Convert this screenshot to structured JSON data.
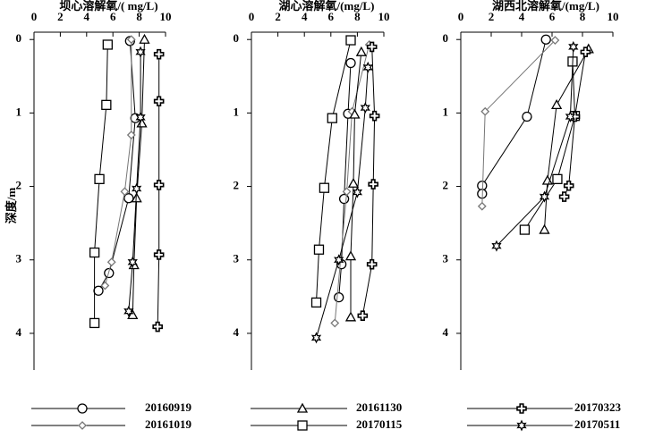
{
  "chart_data": [
    {
      "type": "line",
      "title": "坝心溶解氧/( mg/L)",
      "ylabel": "深度/m",
      "xlim": [
        0,
        10
      ],
      "xticks": [
        0,
        2,
        4,
        6,
        8,
        10
      ],
      "ylim": [
        -0.1,
        4.5
      ],
      "yticks": [
        0,
        1,
        2,
        3,
        4
      ],
      "series": [
        {
          "marker": "circle",
          "color": "#000000",
          "x": [
            7.3,
            7.7,
            7.2,
            5.7,
            4.9
          ],
          "values": [
            0.02,
            1.07,
            2.16,
            3.18,
            3.42
          ]
        },
        {
          "marker": "diamond",
          "color": "#777777",
          "x": [
            7.4,
            7.4,
            6.9,
            5.9,
            5.4
          ],
          "values": [
            0.0,
            1.3,
            2.07,
            3.03,
            3.35
          ]
        },
        {
          "marker": "triangle",
          "color": "#000000",
          "x": [
            8.4,
            8.2,
            7.8,
            7.6,
            7.5
          ],
          "values": [
            0.0,
            1.14,
            2.16,
            3.07,
            3.75
          ]
        },
        {
          "marker": "square",
          "color": "#000000",
          "x": [
            5.6,
            5.5,
            4.97,
            4.6,
            4.6
          ],
          "values": [
            0.07,
            0.89,
            1.9,
            2.9,
            3.86
          ]
        },
        {
          "marker": "cross",
          "color": "#000000",
          "x": [
            9.5,
            9.5,
            9.5,
            9.5,
            9.4
          ],
          "values": [
            0.2,
            0.84,
            1.98,
            2.93,
            3.91
          ]
        },
        {
          "marker": "star",
          "color": "#000000",
          "x": [
            8.1,
            8.1,
            7.8,
            7.5,
            7.2
          ],
          "values": [
            0.17,
            1.06,
            2.03,
            3.03,
            3.7
          ]
        }
      ]
    },
    {
      "type": "line",
      "title": "湖心溶解氧/(mg/L)",
      "xlim": [
        0,
        10
      ],
      "xticks": [
        0,
        2,
        4,
        6,
        8,
        10
      ],
      "ylim": [
        -0.1,
        4.5
      ],
      "yticks": [
        0,
        1,
        2,
        3,
        4
      ],
      "series": [
        {
          "marker": "circle",
          "color": "#000000",
          "x": [
            7.5,
            7.3,
            7.0,
            6.8,
            6.6
          ],
          "values": [
            0.32,
            1.01,
            2.17,
            3.06,
            3.51
          ]
        },
        {
          "marker": "diamond",
          "color": "#777777",
          "x": [
            8.9,
            7.6,
            7.2,
            6.3
          ],
          "values": [
            0.07,
            0.98,
            2.07,
            3.86
          ]
        },
        {
          "marker": "triangle",
          "color": "#000000",
          "x": [
            8.3,
            7.8,
            7.7,
            7.5,
            7.5
          ],
          "values": [
            0.17,
            1.02,
            1.96,
            2.95,
            3.78
          ]
        },
        {
          "marker": "square",
          "color": "#000000",
          "x": [
            7.5,
            6.1,
            5.5,
            5.1,
            4.9
          ],
          "values": [
            0.01,
            1.07,
            2.02,
            2.86,
            3.58
          ]
        },
        {
          "marker": "cross",
          "color": "#000000",
          "x": [
            9.1,
            9.3,
            9.2,
            9.1,
            8.4
          ],
          "values": [
            0.1,
            1.04,
            1.97,
            3.06,
            3.76
          ]
        },
        {
          "marker": "star",
          "color": "#000000",
          "x": [
            8.8,
            8.6,
            8.0,
            6.6,
            4.9
          ],
          "values": [
            0.38,
            0.93,
            2.08,
            3.0,
            4.06
          ]
        }
      ]
    },
    {
      "type": "line",
      "title": "湖西北溶解氧/(mg/L)",
      "xlim": [
        0,
        10
      ],
      "xticks": [
        0,
        2,
        4,
        6,
        8,
        10
      ],
      "ylim": [
        -0.1,
        4.5
      ],
      "yticks": [
        0,
        1,
        2,
        3,
        4
      ],
      "series": [
        {
          "marker": "circle",
          "color": "#000000",
          "x": [
            5.6,
            4.35,
            1.4,
            1.4
          ],
          "values": [
            0.0,
            1.05,
            1.99,
            2.1
          ]
        },
        {
          "marker": "diamond",
          "color": "#777777",
          "x": [
            6.2,
            1.6,
            1.4
          ],
          "values": [
            0.01,
            0.98,
            2.27
          ]
        },
        {
          "marker": "triangle",
          "color": "#000000",
          "x": [
            8.4,
            6.3,
            5.7,
            5.5
          ],
          "values": [
            0.13,
            0.89,
            1.92,
            2.59
          ]
        },
        {
          "marker": "square",
          "color": "#000000",
          "x": [
            7.35,
            7.5,
            6.35,
            4.2
          ],
          "values": [
            0.3,
            1.04,
            1.9,
            2.59
          ]
        },
        {
          "marker": "cross",
          "color": "#000000",
          "x": [
            8.2,
            7.5,
            7.1,
            6.8
          ],
          "values": [
            0.17,
            1.05,
            1.99,
            2.14
          ]
        },
        {
          "marker": "star",
          "color": "#000000",
          "x": [
            7.4,
            7.2,
            5.5,
            2.35
          ],
          "values": [
            0.1,
            1.05,
            2.14,
            2.81
          ]
        }
      ]
    }
  ],
  "legend": [
    {
      "label": "20160919",
      "marker": "circle"
    },
    {
      "label": "20161019",
      "marker": "diamond"
    },
    {
      "label": "20161130",
      "marker": "triangle"
    },
    {
      "label": "20170115",
      "marker": "square"
    },
    {
      "label": "20170323",
      "marker": "cross"
    },
    {
      "label": "20170511",
      "marker": "star"
    }
  ]
}
